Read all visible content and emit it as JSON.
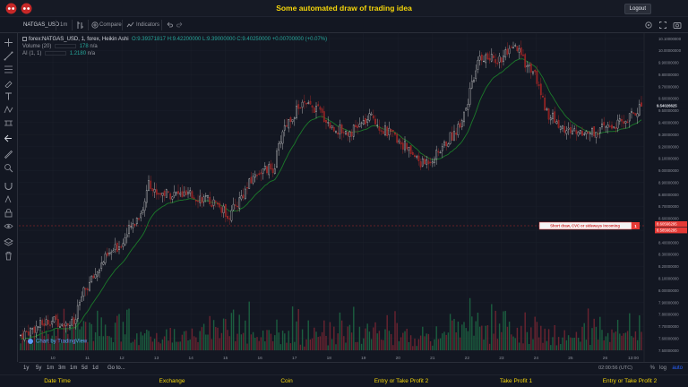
{
  "page": {
    "title": "Some automated draw of trading idea",
    "logout_label": "Logout"
  },
  "toolbar": {
    "symbol": "NATGAS_USD",
    "interval": "1m",
    "compare_label": "Compare",
    "indicators_label": "Indicators"
  },
  "legend": {
    "title": "forex:NATGAS_USD, 1, forex, Heikin Ashi",
    "ohlc": "O:9.39371817 H:9.42200000 L:9.39000000 C:9.40250000 +0.00700000 (+0.07%)",
    "volume_label": "Volume (20)",
    "volume_value": "178",
    "volume_na": "n/a",
    "ai_label": "AI (1, 1)",
    "ai_value": "1.2180",
    "ai_na": "n/a"
  },
  "credit": "Chart by TradingView",
  "time_ranges": [
    "1y",
    "5y",
    "1m",
    "3m",
    "1m",
    "5d",
    "1d",
    "Go to..."
  ],
  "timezone": "02:00:56 (UTC)",
  "bottom_options": {
    "pct": "%",
    "log": "log",
    "auto": "auto"
  },
  "annotation": {
    "label": "Short draw, CVC or sideways incoming",
    "marker": "1"
  },
  "footer": [
    "Date Time",
    "Exchange",
    "Coin",
    "Entry or Take Profit 2",
    "Take Profit 1",
    "Entry or Take Profit 2"
  ],
  "colors": {
    "up": "#26a69a",
    "down": "#ef5350",
    "accent": "#f5d60a",
    "red_label": "#e53935",
    "ema": "#1b7a2a"
  },
  "chart_data": {
    "type": "candlestick",
    "x_tick_labels": [
      "10",
      "11",
      "12",
      "13",
      "14",
      "15",
      "16",
      "17",
      "18",
      "19",
      "20",
      "21",
      "22",
      "23",
      "24",
      "25",
      "26",
      "13:00"
    ],
    "y_tick_labels": [
      "10.10000000",
      "10.00000000",
      "9.90000000",
      "9.80000000",
      "9.70000000",
      "9.60000000",
      "9.50000000",
      "9.40000000",
      "9.30000000",
      "9.20000000",
      "9.10000000",
      "9.00000000",
      "8.90000000",
      "8.80000000",
      "8.70000000",
      "8.60000000",
      "8.50000000",
      "8.40000000",
      "8.30000000",
      "8.20000000",
      "8.10000000",
      "8.00000000",
      "7.90000000",
      "7.80000000",
      "7.70000000",
      "7.60000000",
      "7.50000000"
    ],
    "price_range": [
      7.5,
      10.1
    ],
    "last_price_label": "9.54026625",
    "red_price_labels": [
      "8.60566295",
      "8.58566295"
    ],
    "close_keypoints": [
      [
        0,
        7.62
      ],
      [
        35,
        7.75
      ],
      [
        62,
        7.72
      ],
      [
        70,
        7.95
      ],
      [
        95,
        8.25
      ],
      [
        115,
        8.4
      ],
      [
        140,
        8.7
      ],
      [
        145,
        8.95
      ],
      [
        150,
        8.82
      ],
      [
        175,
        8.8
      ],
      [
        200,
        8.78
      ],
      [
        220,
        8.72
      ],
      [
        235,
        8.62
      ],
      [
        250,
        8.8
      ],
      [
        265,
        8.98
      ],
      [
        285,
        9.02
      ],
      [
        295,
        9.35
      ],
      [
        315,
        9.55
      ],
      [
        335,
        9.5
      ],
      [
        350,
        9.35
      ],
      [
        370,
        9.32
      ],
      [
        395,
        9.45
      ],
      [
        405,
        9.35
      ],
      [
        425,
        9.25
      ],
      [
        450,
        9.05
      ],
      [
        465,
        9.12
      ],
      [
        490,
        9.35
      ],
      [
        500,
        9.55
      ],
      [
        515,
        9.95
      ],
      [
        535,
        9.92
      ],
      [
        555,
        10.02
      ],
      [
        565,
        9.9
      ],
      [
        575,
        9.82
      ],
      [
        590,
        9.48
      ],
      [
        610,
        9.33
      ],
      [
        640,
        9.32
      ],
      [
        675,
        9.4
      ],
      [
        690,
        9.5
      ],
      [
        700,
        9.58
      ]
    ]
  }
}
